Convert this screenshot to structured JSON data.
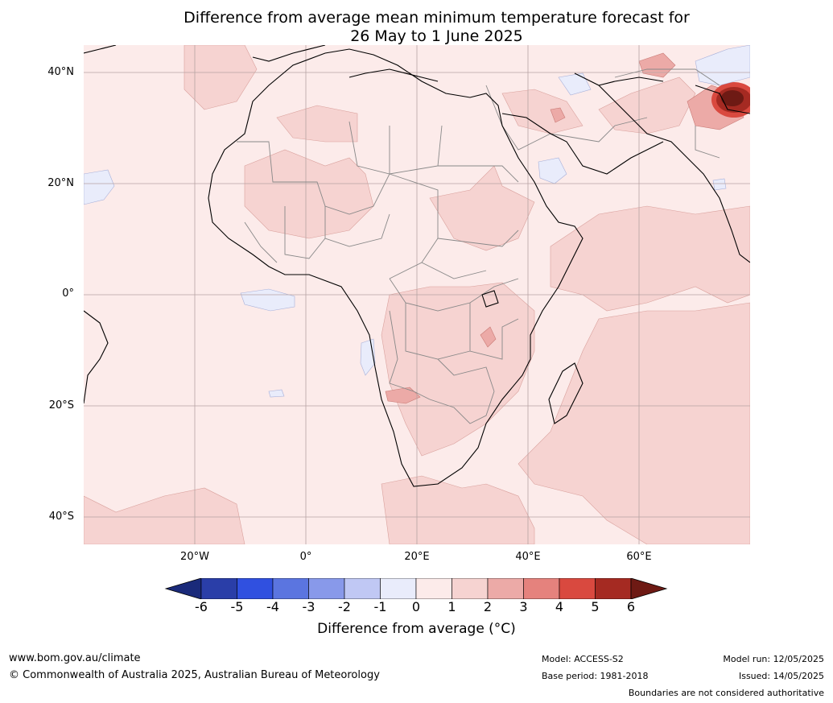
{
  "title": {
    "line1": "Difference from average mean minimum temperature forecast for",
    "line2": "26 May to 1 June 2025"
  },
  "axes": {
    "lat_labels": [
      "40°N",
      "20°N",
      "0°",
      "20°S",
      "40°S"
    ],
    "lon_labels": [
      "20°W",
      "0°",
      "20°E",
      "40°E",
      "60°E"
    ]
  },
  "colorbar": {
    "ticks": [
      "-6",
      "-5",
      "-4",
      "-3",
      "-2",
      "-1",
      "0",
      "1",
      "2",
      "3",
      "4",
      "5",
      "6"
    ],
    "label": "Difference from average (°C)",
    "colors": [
      "#1a2a7a",
      "#2a3ea8",
      "#3050e0",
      "#5b75e0",
      "#8899ea",
      "#c0c8f4",
      "#e9ecfb",
      "#fcebea",
      "#f6d3d1",
      "#ecaaa7",
      "#e5827d",
      "#d9493f",
      "#a52a22",
      "#6e1a14"
    ]
  },
  "footer": {
    "website": "www.bom.gov.au/climate",
    "copyright": "© Commonwealth of Australia 2025, Australian Bureau of Meteorology",
    "model": "Model: ACCESS-S2",
    "base_period": "Base period: 1981-2018",
    "model_run": "Model run: 12/05/2025",
    "issued": "Issued: 14/05/2025",
    "disclaimer": "Boundaries are not considered authoritative"
  }
}
